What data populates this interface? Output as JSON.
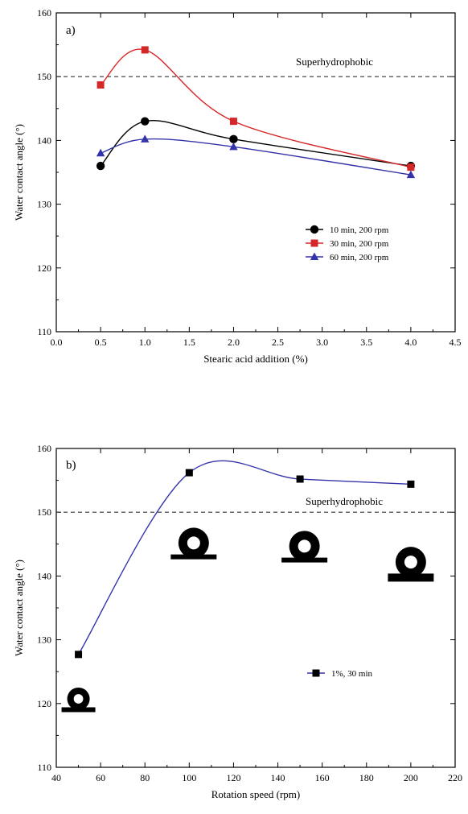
{
  "chart_data": [
    {
      "type": "line",
      "panel_label": "a)",
      "xlabel": "Stearic acid addition (%)",
      "ylabel": "Water contact angle (°)",
      "xlim": [
        0.0,
        4.5
      ],
      "ylim": [
        110,
        160
      ],
      "xticks": [
        "0.0",
        "0.5",
        "1.0",
        "1.5",
        "2.0",
        "2.5",
        "3.0",
        "3.5",
        "4.0",
        "4.5"
      ],
      "yticks": [
        "110",
        "120",
        "130",
        "140",
        "150",
        "160"
      ],
      "reference_line": {
        "y": 150,
        "label": "Superhydrophobic",
        "style": "dashed"
      },
      "legend_position": "center-right",
      "series": [
        {
          "name": "10 min, 200 rpm",
          "marker": "circle",
          "color": "#000000",
          "x": [
            0.5,
            1.0,
            2.0,
            4.0
          ],
          "y": [
            136,
            143,
            140.2,
            136
          ]
        },
        {
          "name": "30 min, 200 rpm",
          "marker": "square",
          "color": "#d62728",
          "x": [
            0.5,
            1.0,
            2.0,
            4.0
          ],
          "y": [
            148.7,
            154.2,
            143,
            135.8
          ]
        },
        {
          "name": "60 min, 200 rpm",
          "marker": "triangle",
          "color": "#3333aa",
          "x": [
            0.5,
            1.0,
            2.0,
            4.0
          ],
          "y": [
            138,
            140.2,
            139,
            134.6
          ]
        }
      ]
    },
    {
      "type": "line",
      "panel_label": "b)",
      "xlabel": "Rotation speed (rpm)",
      "ylabel": "Water contact angle (°)",
      "xlim": [
        40,
        220
      ],
      "ylim": [
        110,
        160
      ],
      "xticks": [
        "40",
        "60",
        "80",
        "100",
        "120",
        "140",
        "160",
        "180",
        "200",
        "220"
      ],
      "yticks": [
        "110",
        "120",
        "130",
        "140",
        "150",
        "160"
      ],
      "reference_line": {
        "y": 150,
        "label": "Superhydrophobic",
        "style": "dashed"
      },
      "legend_position": "center-right",
      "series": [
        {
          "name": "1%, 30 min",
          "marker": "square",
          "color": "#000000",
          "line_color": "#3333aa",
          "x": [
            50,
            100,
            150,
            200
          ],
          "y": [
            127.7,
            156.2,
            155.2,
            154.4
          ]
        }
      ],
      "droplets": [
        {
          "x": 50,
          "y": 119.5
        },
        {
          "x": 102,
          "y": 143.5
        },
        {
          "x": 152,
          "y": 143
        },
        {
          "x": 200,
          "y": 140.5
        }
      ]
    }
  ]
}
